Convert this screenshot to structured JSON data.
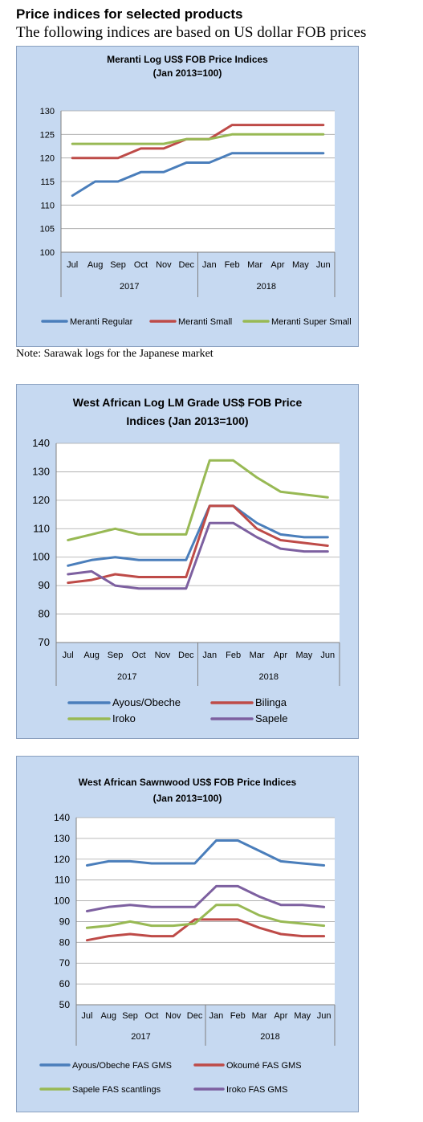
{
  "page": {
    "heading": "Price indices for selected products",
    "subheading": "The following indices are based on US dollar FOB prices",
    "note": "Note: Sarawak logs for the Japanese market"
  },
  "chart_data": [
    {
      "type": "line",
      "title": "Meranti Log US$ FOB Price Indices",
      "subtitle": "(Jan 2013=100)",
      "categories": [
        "Jul",
        "Aug",
        "Sep",
        "Oct",
        "Nov",
        "Dec",
        "Jan",
        "Feb",
        "Mar",
        "Apr",
        "May",
        "Jun"
      ],
      "category_groups": [
        {
          "label": "2017",
          "span": 6
        },
        {
          "label": "2018",
          "span": 6
        }
      ],
      "ylim": [
        100,
        130
      ],
      "yticks": [
        100,
        105,
        110,
        115,
        120,
        125,
        130
      ],
      "grid": true,
      "legend_position": "bottom",
      "series": [
        {
          "name": "Meranti Regular",
          "color": "#4a7ebb",
          "values": [
            112,
            115,
            115,
            117,
            117,
            119,
            119,
            121,
            121,
            121,
            121,
            121
          ]
        },
        {
          "name": "Meranti Small",
          "color": "#be4b48",
          "values": [
            120,
            120,
            120,
            122,
            122,
            124,
            124,
            127,
            127,
            127,
            127,
            127
          ]
        },
        {
          "name": "Meranti Super Small",
          "color": "#98b954",
          "values": [
            123,
            123,
            123,
            123,
            123,
            124,
            124,
            125,
            125,
            125,
            125,
            125
          ]
        }
      ]
    },
    {
      "type": "line",
      "title": "West African Log LM Grade US$ FOB Price",
      "subtitle": "Indices (Jan 2013=100)",
      "categories": [
        "Jul",
        "Aug",
        "Sep",
        "Oct",
        "Nov",
        "Dec",
        "Jan",
        "Feb",
        "Mar",
        "Apr",
        "May",
        "Jun"
      ],
      "category_groups": [
        {
          "label": "2017",
          "span": 6
        },
        {
          "label": "2018",
          "span": 6
        }
      ],
      "ylim": [
        70,
        140
      ],
      "yticks": [
        70,
        80,
        90,
        100,
        110,
        120,
        130,
        140
      ],
      "grid": true,
      "legend_position": "bottom",
      "series": [
        {
          "name": "Ayous/Obeche",
          "color": "#4a7ebb",
          "values": [
            97,
            99,
            100,
            99,
            99,
            99,
            118,
            118,
            112,
            108,
            107,
            107
          ]
        },
        {
          "name": "Bilinga",
          "color": "#be4b48",
          "values": [
            91,
            92,
            94,
            93,
            93,
            93,
            118,
            118,
            110,
            106,
            105,
            104
          ]
        },
        {
          "name": "Iroko",
          "color": "#98b954",
          "values": [
            106,
            108,
            110,
            108,
            108,
            108,
            134,
            134,
            128,
            123,
            122,
            121
          ]
        },
        {
          "name": "Sapele",
          "color": "#7d60a0",
          "values": [
            94,
            95,
            90,
            89,
            89,
            89,
            112,
            112,
            107,
            103,
            102,
            102
          ]
        }
      ]
    },
    {
      "type": "line",
      "title": "West African Sawnwood US$ FOB Price Indices",
      "subtitle": "(Jan 2013=100)",
      "categories": [
        "Jul",
        "Aug",
        "Sep",
        "Oct",
        "Nov",
        "Dec",
        "Jan",
        "Feb",
        "Mar",
        "Apr",
        "May",
        "Jun"
      ],
      "category_groups": [
        {
          "label": "2017",
          "span": 6
        },
        {
          "label": "2018",
          "span": 6
        }
      ],
      "ylim": [
        50,
        140
      ],
      "yticks": [
        50,
        60,
        70,
        80,
        90,
        100,
        110,
        120,
        130,
        140
      ],
      "grid": true,
      "legend_position": "bottom",
      "series": [
        {
          "name": "Ayous/Obeche  FAS GMS",
          "color": "#4a7ebb",
          "values": [
            117,
            119,
            119,
            118,
            118,
            118,
            129,
            129,
            124,
            119,
            118,
            117
          ]
        },
        {
          "name": "Okoumé  FAS GMS",
          "color": "#be4b48",
          "values": [
            81,
            83,
            84,
            83,
            83,
            91,
            91,
            91,
            87,
            84,
            83,
            83
          ]
        },
        {
          "name": "Sapele FAS scantlings",
          "color": "#98b954",
          "values": [
            87,
            88,
            90,
            88,
            88,
            89,
            98,
            98,
            93,
            90,
            89,
            88
          ]
        },
        {
          "name": "Iroko FAS GMS",
          "color": "#7d60a0",
          "values": [
            95,
            97,
            98,
            97,
            97,
            97,
            107,
            107,
            102,
            98,
            98,
            97
          ]
        }
      ]
    }
  ]
}
